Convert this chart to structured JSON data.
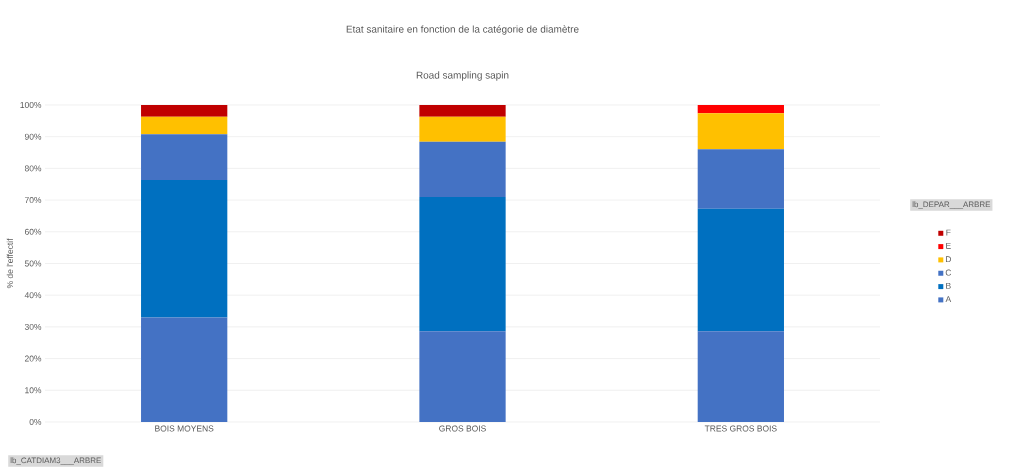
{
  "chart_data": {
    "type": "bar",
    "stacked": true,
    "title": "Etat sanitaire en fonction de la catégorie de diamètre",
    "subtitle": "Road sampling sapin",
    "ylabel": "% de l'effectif",
    "legend_title": "lb_DEPAR___ARBRE",
    "annotations": [
      "lb_CATDIAM3___ARBRE"
    ],
    "categories": [
      "BOIS MOYENS",
      "GROS BOIS",
      "TRES GROS BOIS"
    ],
    "series": [
      {
        "name": "A",
        "color": "#4472c4",
        "values": [
          33,
          28.6,
          28.6
        ]
      },
      {
        "name": "B",
        "color": "#0070c0",
        "values": [
          43.3,
          42.4,
          38.7
        ]
      },
      {
        "name": "C",
        "color": "#4472c4",
        "values": [
          14.5,
          17.4,
          18.7
        ]
      },
      {
        "name": "D",
        "color": "#ffc000",
        "values": [
          5.5,
          7.9,
          11.4
        ]
      },
      {
        "name": "E",
        "color": "#ff0000",
        "values": [
          0,
          0,
          2.6
        ]
      },
      {
        "name": "F",
        "color": "#c00000",
        "values": [
          3.7,
          3.7,
          0
        ]
      }
    ],
    "ylim": [
      0,
      100
    ],
    "yticks": [
      {
        "value": 0,
        "label": "0%"
      },
      {
        "value": 10,
        "label": "10%"
      },
      {
        "value": 20,
        "label": "20%"
      },
      {
        "value": 30,
        "label": "30%"
      },
      {
        "value": 40,
        "label": "40%"
      },
      {
        "value": 50,
        "label": "50%"
      },
      {
        "value": 60,
        "label": "60%"
      },
      {
        "value": 70,
        "label": "70%"
      },
      {
        "value": 80,
        "label": "80%"
      },
      {
        "value": 90,
        "label": "90%"
      },
      {
        "value": 100,
        "label": "100%"
      }
    ],
    "grid": "y",
    "legend": "right"
  }
}
